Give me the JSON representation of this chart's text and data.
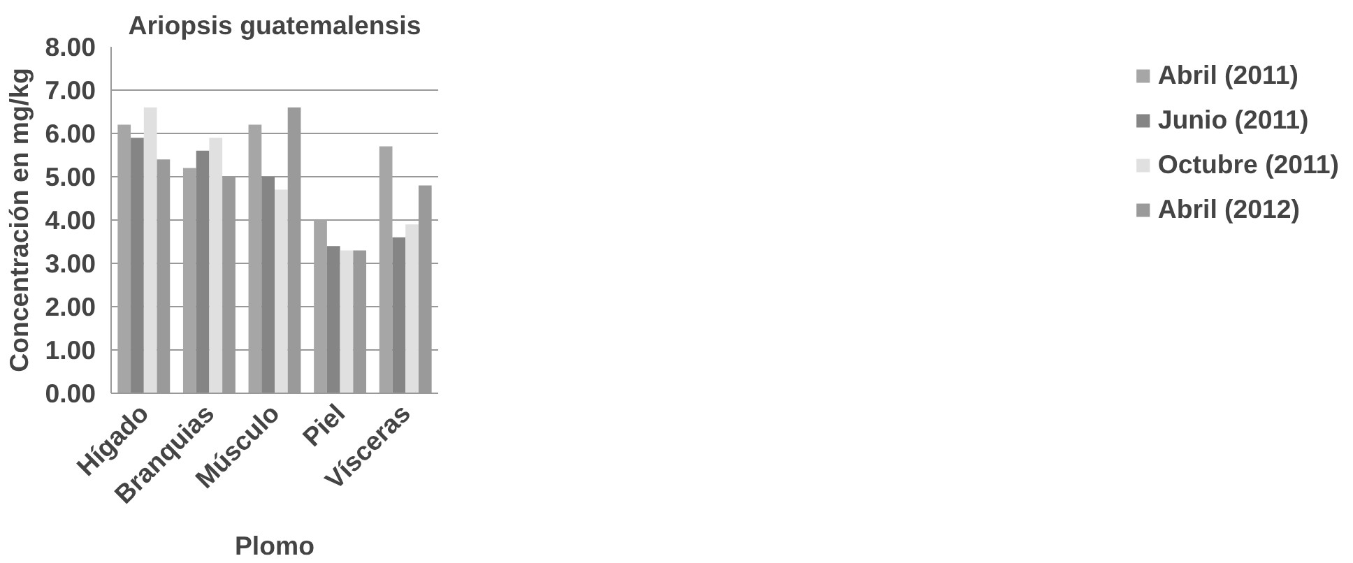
{
  "chart_data": {
    "type": "bar",
    "title": "Ariopsis guatemalensis",
    "xlabel": "Plomo",
    "ylabel": "Concentración en mg/kg",
    "categories": [
      "Hígado",
      "Branquias",
      "Músculo",
      "Piel",
      "Vísceras"
    ],
    "series": [
      {
        "name": "Abril (2011)",
        "color": "#a6a6a6",
        "values": [
          6.2,
          5.2,
          6.2,
          4.0,
          5.7
        ]
      },
      {
        "name": "Junio (2011)",
        "color": "#858585",
        "values": [
          5.9,
          5.6,
          5.0,
          3.4,
          3.6
        ]
      },
      {
        "name": "Octubre (2011)",
        "color": "#e0e0e0",
        "values": [
          6.6,
          5.9,
          4.7,
          3.3,
          3.9
        ]
      },
      {
        "name": "Abril (2012)",
        "color": "#9a9a9a",
        "values": [
          5.4,
          5.0,
          6.6,
          3.3,
          4.8
        ]
      }
    ],
    "ylim": [
      0,
      8
    ],
    "yticks": [
      {
        "value": 0,
        "label": "0.00"
      },
      {
        "value": 1,
        "label": "1.00"
      },
      {
        "value": 2,
        "label": "2.00"
      },
      {
        "value": 3,
        "label": "3.00"
      },
      {
        "value": 4,
        "label": "4.00"
      },
      {
        "value": 5,
        "label": "5.00"
      },
      {
        "value": 6,
        "label": "6.00"
      },
      {
        "value": 7,
        "label": "7.00"
      },
      {
        "value": 8,
        "label": "8.00"
      }
    ],
    "grid": "y",
    "legend": "right"
  }
}
